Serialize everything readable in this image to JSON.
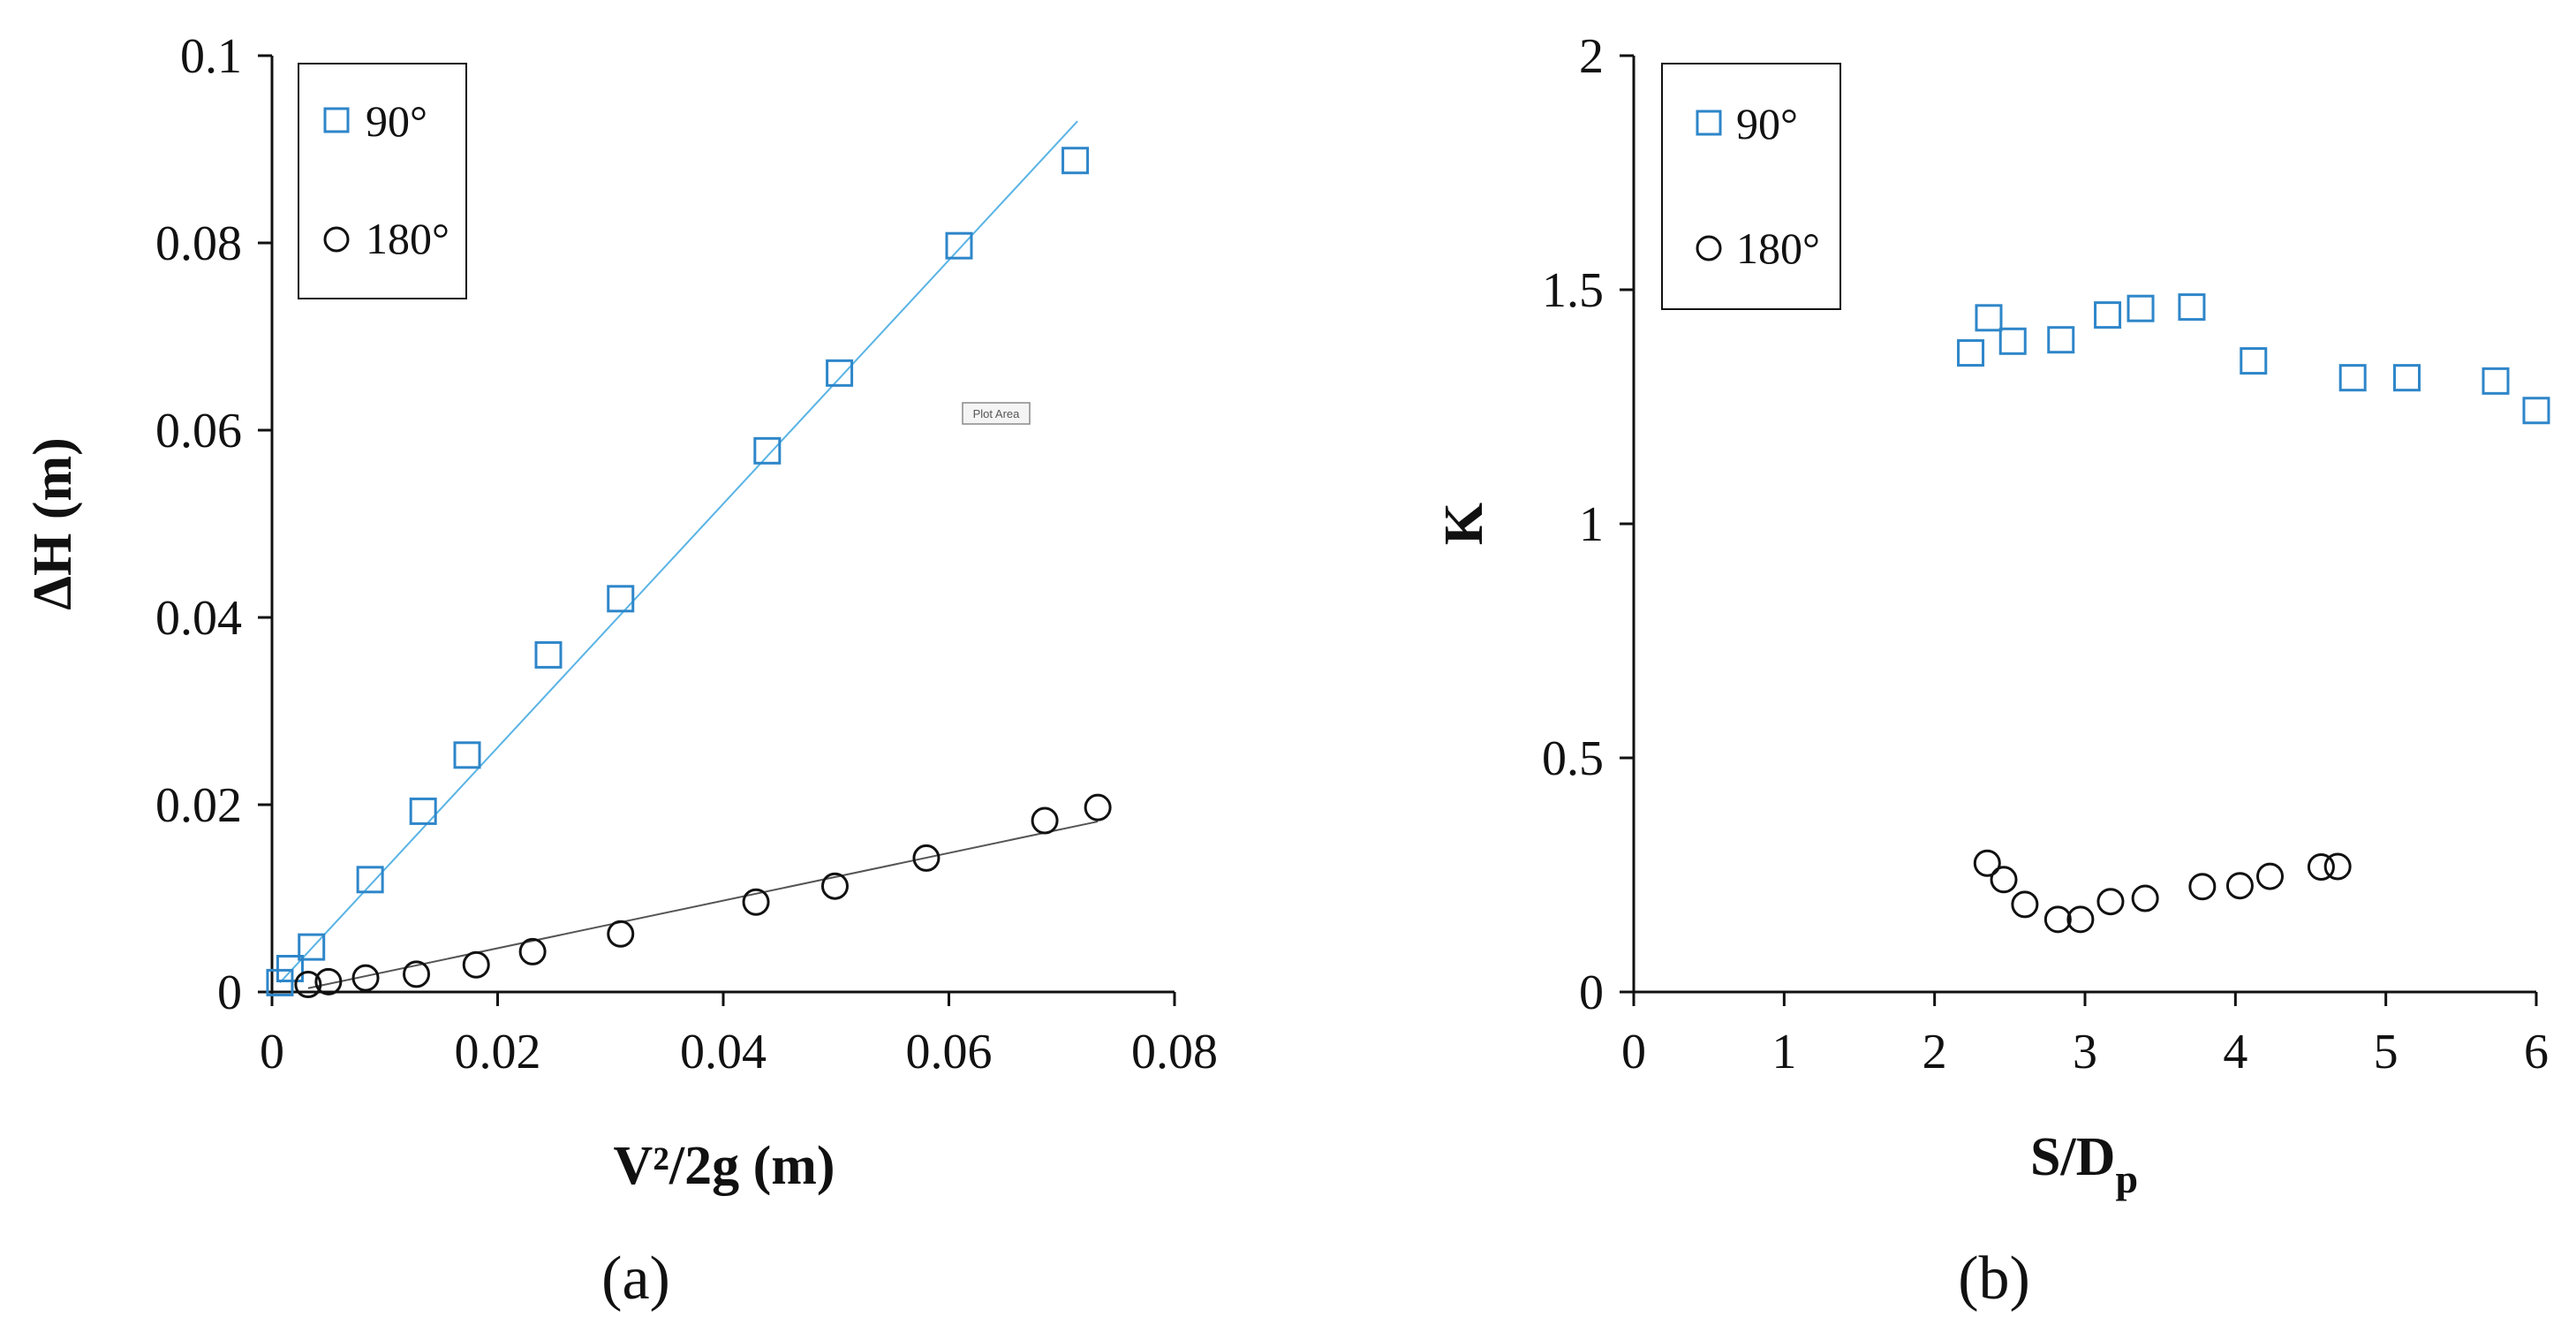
{
  "figure": {
    "background": "#ffffff",
    "colors": {
      "series_90": "#2E86C9",
      "series_180": "#111111",
      "fit_90": "#5AB4E5",
      "fit_180": "#555555",
      "axis": "#111111"
    }
  },
  "chart_data": [
    {
      "id": "a",
      "type": "scatter",
      "panel_label": "(a)",
      "xlabel": "V²/2g (m)",
      "ylabel": "ΔH (m)",
      "xlim": [
        0,
        0.08
      ],
      "ylim": [
        0,
        0.1
      ],
      "xticks": [
        0,
        0.02,
        0.04,
        0.06,
        0.08
      ],
      "yticks": [
        0,
        0.02,
        0.04,
        0.06,
        0.08,
        0.1
      ],
      "xtick_labels": [
        "0",
        "0.02",
        "0.04",
        "0.06",
        "0.08"
      ],
      "ytick_labels": [
        "0",
        "0.02",
        "0.04",
        "0.06",
        "0.08",
        "0.1"
      ],
      "grid": false,
      "legend": {
        "placement": "top-left",
        "entries": [
          "90°",
          "180°"
        ]
      },
      "annotation": "Plot Area",
      "series": [
        {
          "name": "90°",
          "marker": "square",
          "color": "#2E86C9",
          "x": [
            0.0007,
            0.0016,
            0.0035,
            0.0087,
            0.0134,
            0.0173,
            0.0245,
            0.0309,
            0.0439,
            0.0503,
            0.0609,
            0.0712
          ],
          "y": [
            0.001,
            0.0025,
            0.0048,
            0.012,
            0.0193,
            0.0253,
            0.036,
            0.042,
            0.0578,
            0.0661,
            0.0797,
            0.0888
          ],
          "fit": {
            "x": [
              0.0007,
              0.0714
            ],
            "y": [
              0.001,
              0.093
            ],
            "color": "#5AB4E5"
          }
        },
        {
          "name": "180°",
          "marker": "circle",
          "color": "#111111",
          "x": [
            0.0032,
            0.005,
            0.0083,
            0.0128,
            0.0181,
            0.0231,
            0.0309,
            0.0429,
            0.0499,
            0.058,
            0.0685,
            0.0732
          ],
          "y": [
            0.0008,
            0.0011,
            0.0015,
            0.0019,
            0.0029,
            0.0043,
            0.0062,
            0.0096,
            0.0113,
            0.0143,
            0.0183,
            0.0197
          ],
          "fit": {
            "x": [
              0.0032,
              0.0732
            ],
            "y": [
              0.0004,
              0.0182
            ],
            "color": "#555555"
          }
        }
      ]
    },
    {
      "id": "b",
      "type": "scatter",
      "panel_label": "(b)",
      "xlabel": "S/Dp",
      "ylabel": "K",
      "xlim": [
        0,
        6
      ],
      "ylim": [
        0,
        2
      ],
      "xticks": [
        0,
        1,
        2,
        3,
        4,
        5,
        6
      ],
      "yticks": [
        0,
        0.5,
        1,
        1.5,
        2
      ],
      "xtick_labels": [
        "0",
        "1",
        "2",
        "3",
        "4",
        "5",
        "6"
      ],
      "ytick_labels": [
        "0",
        "0.5",
        "1",
        "1.5",
        "2"
      ],
      "grid": false,
      "legend": {
        "placement": "top-left",
        "entries": [
          "90°",
          "180°"
        ]
      },
      "series": [
        {
          "name": "90°",
          "marker": "square",
          "color": "#2E86C9",
          "x": [
            2.24,
            2.36,
            2.52,
            2.84,
            3.15,
            3.37,
            3.71,
            4.12,
            4.78,
            5.14,
            5.73,
            6.0
          ],
          "y": [
            1.365,
            1.44,
            1.39,
            1.393,
            1.446,
            1.46,
            1.463,
            1.348,
            1.312,
            1.312,
            1.305,
            1.242
          ]
        },
        {
          "name": "180°",
          "marker": "circle",
          "color": "#111111",
          "x": [
            2.35,
            2.46,
            2.6,
            2.82,
            2.97,
            3.17,
            3.4,
            3.78,
            4.03,
            4.23,
            4.57,
            4.68
          ],
          "y": [
            0.275,
            0.24,
            0.187,
            0.155,
            0.155,
            0.193,
            0.2,
            0.225,
            0.227,
            0.247,
            0.267,
            0.268
          ]
        }
      ]
    }
  ]
}
